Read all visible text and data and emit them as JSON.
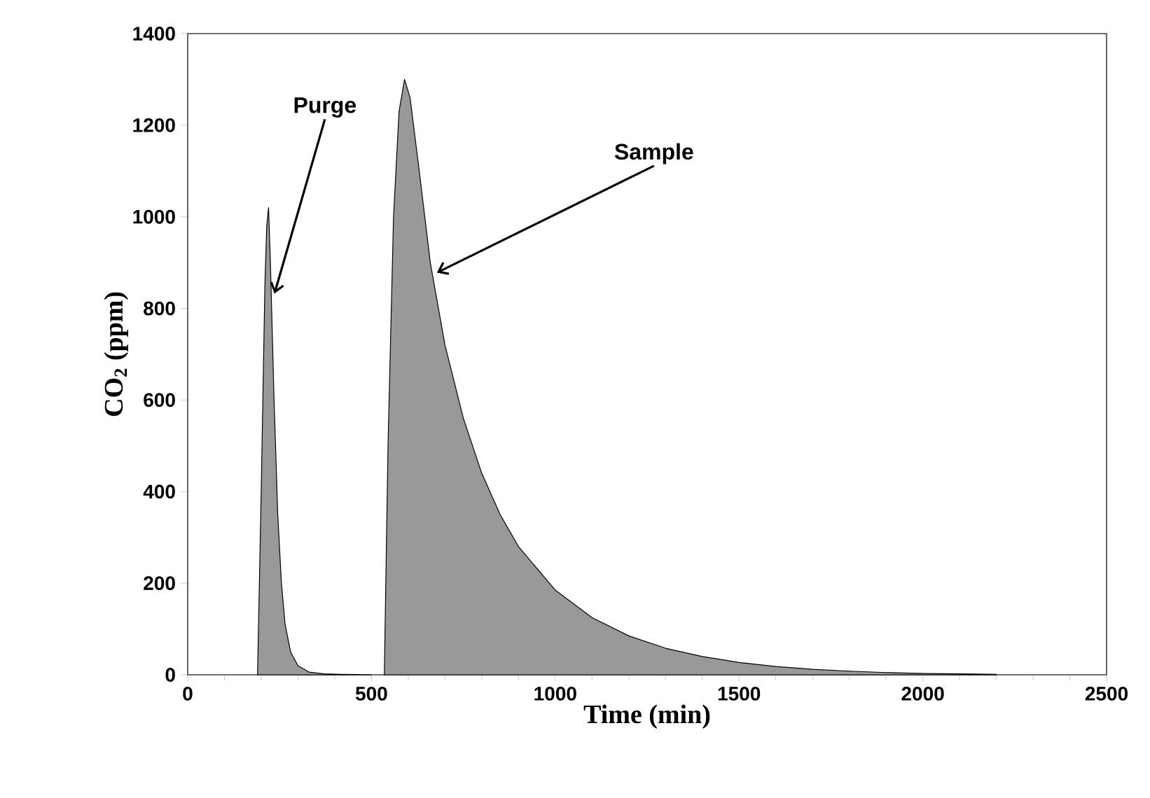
{
  "chart_data": {
    "type": "area",
    "xlabel": "Time (min)",
    "ylabel": "CO$_{2}$ (ppm)",
    "xlim": [
      0,
      2500
    ],
    "ylim": [
      0,
      1400
    ],
    "xticks": [
      0,
      500,
      1000,
      1500,
      2000,
      2500
    ],
    "yticks": [
      0,
      200,
      400,
      600,
      800,
      1000,
      1200,
      1400
    ],
    "grid": false,
    "series": [
      {
        "color": "#999999",
        "x": [
          190,
          200,
          210,
          215,
          220,
          225,
          235,
          245,
          255,
          265,
          280,
          300,
          330,
          370,
          420,
          500
        ],
        "values": [
          0,
          400,
          850,
          980,
          1020,
          900,
          600,
          350,
          200,
          110,
          50,
          20,
          6,
          2,
          1,
          0
        ]
      },
      {
        "color": "#999999",
        "x": [
          535,
          545,
          560,
          575,
          590,
          605,
          630,
          660,
          700,
          750,
          800,
          850,
          900,
          1000,
          1100,
          1200,
          1300,
          1400,
          1500,
          1600,
          1700,
          1800,
          1900,
          2000,
          2100,
          2200
        ],
        "values": [
          0,
          500,
          1000,
          1230,
          1300,
          1260,
          1100,
          900,
          720,
          560,
          440,
          350,
          280,
          185,
          125,
          85,
          58,
          40,
          27,
          18,
          12,
          8,
          5,
          3,
          2,
          1
        ]
      }
    ],
    "annotations": [
      {
        "text": "Purge",
        "x": 236,
        "y": 832
      },
      {
        "text": "Sample",
        "x": 678,
        "y": 878
      }
    ]
  }
}
